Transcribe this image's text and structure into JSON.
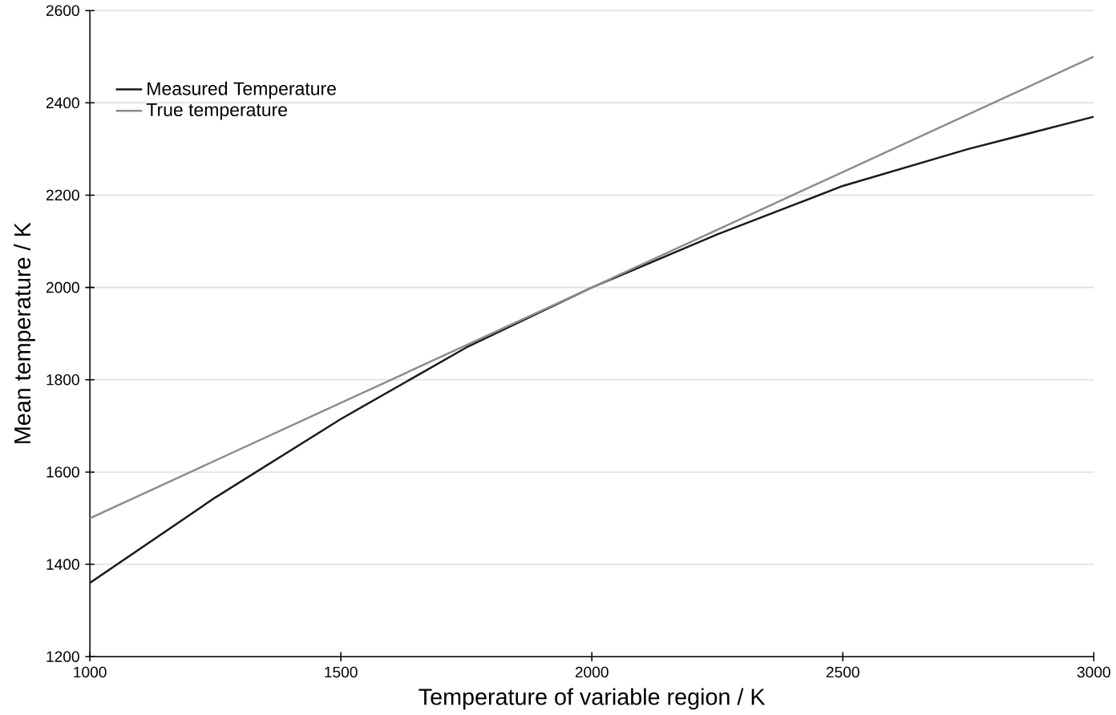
{
  "chart_data": {
    "type": "line",
    "xlabel": "Temperature of variable region / K",
    "ylabel": "Mean temperature / K",
    "series": [
      {
        "name": "Measured Temperature",
        "color": "#1a1a1a",
        "x": [
          1000,
          1250,
          1500,
          1750,
          2000,
          2250,
          2500,
          2750,
          3000
        ],
        "values": [
          1360,
          1545,
          1715,
          1870,
          2000,
          2115,
          2220,
          2300,
          2370
        ]
      },
      {
        "name": "True temperature",
        "color": "#8c8c8c",
        "x": [
          1000,
          3000
        ],
        "values": [
          1500,
          2500
        ]
      }
    ],
    "xlim": [
      1000,
      3000
    ],
    "xticks": [
      1000,
      1500,
      2000,
      2500,
      3000
    ],
    "ylim": [
      1200,
      2600
    ],
    "yticks": [
      1200,
      1400,
      1600,
      1800,
      2000,
      2200,
      2400,
      2600
    ],
    "grid": "y",
    "legend": "top left",
    "marker": "none",
    "line_style": "solid"
  }
}
